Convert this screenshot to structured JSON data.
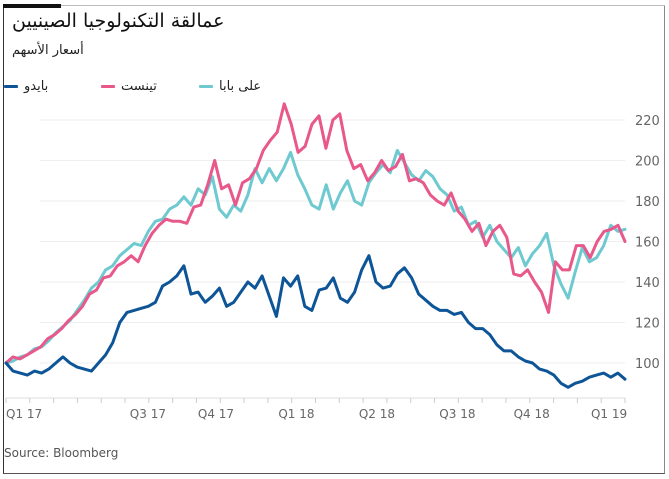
{
  "title": "عمالقة التكنولوجيا الصينيين",
  "subtitle": "أسعار الأسهم",
  "source": "Source: Bloomberg",
  "chart_data": {
    "type": "line",
    "title": "عمالقة التكنولوجيا الصينيين",
    "subtitle": "أسعار الأسهم",
    "xlabel": "",
    "ylabel": "",
    "ylim": [
      85,
      232
    ],
    "yticks": [
      100,
      120,
      140,
      160,
      180,
      200,
      220
    ],
    "y_axis_side": "right",
    "grid": true,
    "legend_position": "top-left",
    "x_tick_labels": [
      {
        "label": "Q1 17",
        "t": 0.0
      },
      {
        "label": "Q3 17",
        "t": 0.2
      },
      {
        "label": "Q4 17",
        "t": 0.31
      },
      {
        "label": "Q1 18",
        "t": 0.44
      },
      {
        "label": "Q2 18",
        "t": 0.57
      },
      {
        "label": "Q3 18",
        "t": 0.7
      },
      {
        "label": "Q4 18",
        "t": 0.82
      },
      {
        "label": "Q1 19",
        "t": 0.945
      }
    ],
    "series": [
      {
        "name": "علی بابا",
        "color": "#6ec9d0",
        "values": [
          100,
          101,
          103,
          104,
          107,
          108,
          111,
          115,
          118,
          121,
          126,
          131,
          137,
          140,
          146,
          148,
          153,
          156,
          159,
          158,
          165,
          170,
          171,
          176,
          178,
          182,
          178,
          186,
          183,
          192,
          176,
          172,
          178,
          175,
          183,
          196,
          189,
          196,
          190,
          196,
          204,
          193,
          186,
          178,
          176,
          188,
          176,
          184,
          190,
          180,
          178,
          189,
          194,
          198,
          194,
          205,
          199,
          193,
          190,
          195,
          192,
          186,
          183,
          175,
          177,
          168,
          170,
          162,
          168,
          160,
          156,
          152,
          157,
          148,
          154,
          158,
          164,
          148,
          139,
          132,
          145,
          157,
          150,
          152,
          158,
          168,
          165,
          166
        ]
      },
      {
        "name": "تینست",
        "color": "#e8588a",
        "values": [
          100,
          103,
          102,
          104,
          106,
          108,
          112,
          114,
          117,
          121,
          124,
          128,
          134,
          136,
          142,
          143,
          148,
          150,
          153,
          150,
          158,
          164,
          168,
          171,
          170,
          170,
          169,
          177,
          178,
          188,
          200,
          186,
          188,
          178,
          189,
          191,
          196,
          205,
          210,
          214,
          228,
          218,
          204,
          207,
          218,
          222,
          206,
          220,
          223,
          205,
          196,
          198,
          190,
          194,
          200,
          195,
          197,
          203,
          190,
          191,
          189,
          183,
          180,
          178,
          184,
          175,
          171,
          165,
          169,
          158,
          165,
          168,
          162,
          144,
          143,
          146,
          140,
          135,
          125,
          150,
          146,
          146,
          158,
          158,
          152,
          160,
          165,
          166,
          168,
          160
        ]
      },
      {
        "name": "بایدو",
        "color": "#0d5597",
        "values": [
          100,
          96,
          95,
          94,
          96,
          95,
          97,
          100,
          103,
          100,
          98,
          97,
          96,
          100,
          104,
          110,
          120,
          125,
          126,
          127,
          128,
          130,
          138,
          140,
          143,
          148,
          134,
          135,
          130,
          133,
          137,
          128,
          130,
          135,
          140,
          137,
          143,
          133,
          123,
          142,
          138,
          143,
          128,
          126,
          136,
          137,
          142,
          132,
          130,
          135,
          146,
          153,
          140,
          137,
          138,
          144,
          147,
          142,
          134,
          131,
          128,
          126,
          126,
          124,
          125,
          120,
          117,
          117,
          114,
          109,
          106,
          106,
          103,
          101,
          100,
          97,
          96,
          94,
          90,
          88,
          90,
          91,
          93,
          94,
          95,
          93,
          95,
          92
        ]
      }
    ]
  }
}
